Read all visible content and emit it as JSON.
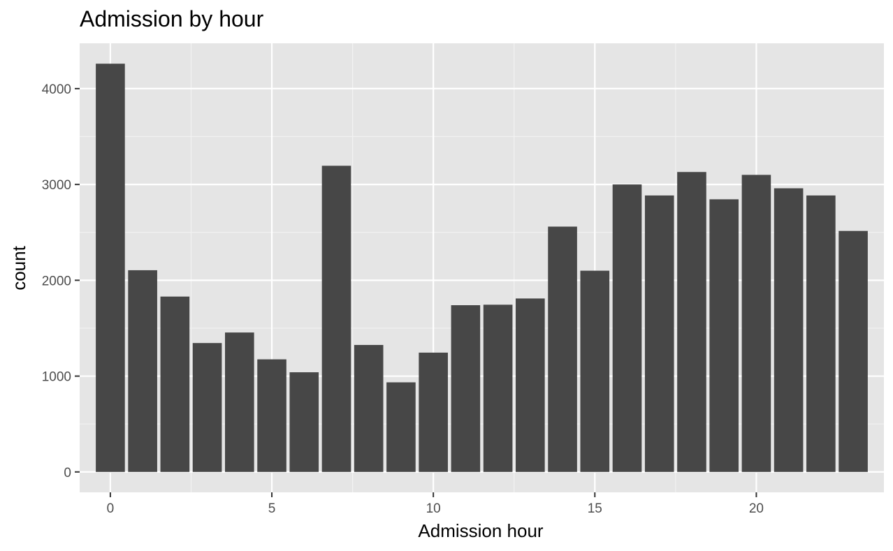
{
  "chart_data": {
    "type": "bar",
    "title": "Admission by hour",
    "xlabel": "Admission hour",
    "ylabel": "count",
    "categories": [
      0,
      1,
      2,
      3,
      4,
      5,
      6,
      7,
      8,
      9,
      10,
      11,
      12,
      13,
      14,
      15,
      16,
      17,
      18,
      19,
      20,
      21,
      22,
      23
    ],
    "values": [
      4260,
      2105,
      1830,
      1345,
      1455,
      1175,
      1040,
      3195,
      1325,
      935,
      1245,
      1740,
      1745,
      1810,
      2560,
      2100,
      3000,
      2885,
      3130,
      2845,
      3100,
      2960,
      2885,
      2515
    ],
    "xlim": [
      -0.95,
      23.95
    ],
    "ylim": [
      -213,
      4473
    ],
    "x_ticks": [
      0,
      5,
      10,
      15,
      20
    ],
    "x_tick_labels": [
      "0",
      "5",
      "10",
      "15",
      "20"
    ],
    "y_ticks": [
      0,
      1000,
      2000,
      3000,
      4000
    ],
    "y_tick_labels": [
      "0",
      "1000",
      "2000",
      "3000",
      "4000"
    ],
    "grid": true,
    "legend": "none",
    "colors": {
      "bar": "#474747",
      "panel": "#e5e5e5",
      "grid_major": "#ffffff",
      "grid_minor": "#f2f2f2",
      "tick": "#333333"
    }
  }
}
